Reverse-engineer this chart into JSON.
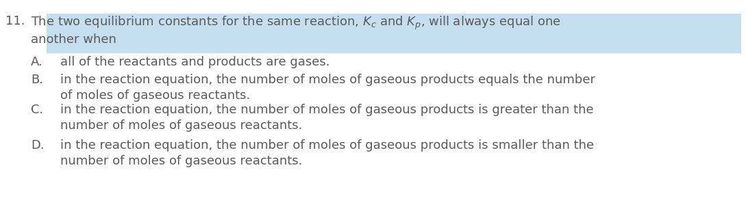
{
  "background_color": "#ffffff",
  "highlight_color": "#c5dff0",
  "text_color": "#5a5a5a",
  "font_size": 13.0,
  "question_number": "11.",
  "line1": "The two equilibrium constants for the same reaction, $K_c$ and $K_p$, will always equal one",
  "line2": "another when",
  "options": [
    {
      "label": "A.",
      "line1": "all of the reactants and products are gases.",
      "line2": ""
    },
    {
      "label": "B.",
      "line1": "in the reaction equation, the number of moles of gaseous products equals the number",
      "line2": "of moles of gaseous reactants."
    },
    {
      "label": "C.",
      "line1": "in the reaction equation, the number of moles of gaseous products is greater than the",
      "line2": "number of moles of gaseous reactants."
    },
    {
      "label": "D.",
      "line1": "in the reaction equation, the number of moles of gaseous products is smaller than the",
      "line2": "number of moles of gaseous reactants."
    }
  ]
}
